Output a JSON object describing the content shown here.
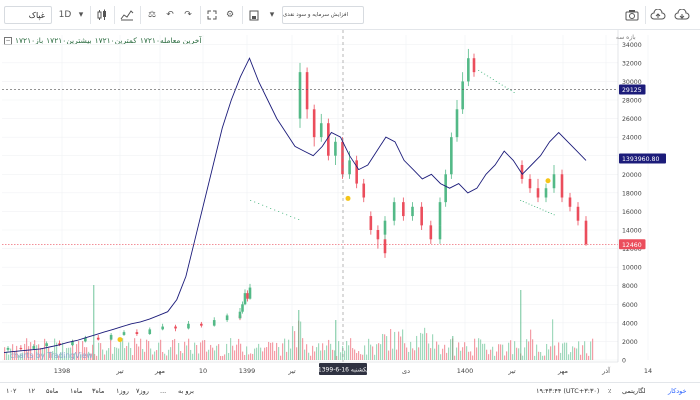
{
  "toolbar": {
    "symbol": "غپاک",
    "interval": "1D",
    "search_placeholder": "افزایش سرمایه و سود نقدی"
  },
  "legend": {
    "items": [
      "باز۱۷۲۱۰",
      "بیشترین۱۷۲۱۰",
      "کمترین۱۷۲۱۰",
      "آخرین معامله۱۷۲۱۰"
    ]
  },
  "scale_label": "بازه سه",
  "price_axis": {
    "ticks": [
      "34000",
      "32000",
      "30000",
      "28000",
      "26000",
      "24000",
      "22000",
      "20000",
      "18000",
      "16000",
      "14000",
      "12000",
      "10000",
      "8000",
      "6000",
      "4000",
      "2000",
      "0"
    ],
    "badges": {
      "line1": "29125",
      "line2": "1393960.80",
      "last": "12460"
    }
  },
  "time_axis": {
    "labels": [
      "1398",
      "تیر",
      "مهر",
      "10",
      "1399",
      "تیر",
      "مهر",
      "دی",
      "1400",
      "تیر",
      "مهر",
      "آذر",
      "14"
    ],
    "crosshair_label": "یکشنبه 16-6-1399"
  },
  "watermark": "charts by TradingView",
  "bottombar": {
    "ranges": [
      "۱۰۲",
      "۱۲",
      "۵ماه",
      "۱ماه",
      "۳ماه",
      "روز۱",
      "روز۷",
      "...",
      "برو به"
    ],
    "time": "۱۹:۴۳:۴۴ (UTC+۳:۳۰)",
    "percent": "٪",
    "log": "لگاریتمی",
    "auto": "خودکار"
  },
  "colors": {
    "up": "#53b987",
    "down": "#eb4d5c",
    "line": "#1c1c7a",
    "badge_blue": "#1c1c7a",
    "badge_red": "#eb4d5c"
  },
  "chart_data": {
    "type": "candlestick",
    "price_range": [
      0,
      35000
    ],
    "overlay_line_series": "blue line",
    "last_price": 12460,
    "reference_line": 29125,
    "candles": [
      {
        "t": "1398",
        "o": 1100,
        "c": 1300,
        "h": 1500,
        "l": 900
      },
      {
        "t": "1398",
        "o": 1300,
        "c": 1200,
        "h": 1600,
        "l": 1000
      },
      {
        "t": "1398",
        "o": 1200,
        "c": 1500,
        "h": 1700,
        "l": 1100
      },
      {
        "t": "1398",
        "o": 1500,
        "c": 1800,
        "h": 2000,
        "l": 1400
      },
      {
        "t": "1398",
        "o": 1800,
        "c": 1600,
        "h": 2100,
        "l": 1500
      },
      {
        "t": "1398",
        "o": 1600,
        "c": 2000,
        "h": 2200,
        "l": 1500
      },
      {
        "t": "1398",
        "o": 2000,
        "c": 2400,
        "h": 2600,
        "l": 1900
      },
      {
        "t": "1398",
        "o": 2400,
        "c": 2200,
        "h": 2700,
        "l": 2100
      },
      {
        "t": "1398",
        "o": 2200,
        "c": 2700,
        "h": 2900,
        "l": 2100
      },
      {
        "t": "1398",
        "o": 2700,
        "c": 3000,
        "h": 3200,
        "l": 2600
      },
      {
        "t": "1398",
        "o": 3000,
        "c": 2800,
        "h": 3300,
        "l": 2600
      },
      {
        "t": "1398",
        "o": 2800,
        "c": 3300,
        "h": 3500,
        "l": 2700
      },
      {
        "t": "1398",
        "o": 3300,
        "c": 3600,
        "h": 3900,
        "l": 3200
      },
      {
        "t": "1398",
        "o": 3600,
        "c": 3400,
        "h": 3800,
        "l": 3100
      },
      {
        "t": "1398",
        "o": 3400,
        "c": 3900,
        "h": 4200,
        "l": 3300
      },
      {
        "t": "1398",
        "o": 3900,
        "c": 3700,
        "h": 4100,
        "l": 3500
      },
      {
        "t": "1398",
        "o": 3700,
        "c": 4300,
        "h": 4600,
        "l": 3600
      },
      {
        "t": "1398",
        "o": 4300,
        "c": 4800,
        "h": 5000,
        "l": 4100
      },
      {
        "t": "1398",
        "o": 4800,
        "c": 4500,
        "h": 5100,
        "l": 4300
      },
      {
        "t": "1399",
        "o": 4500,
        "c": 5200,
        "h": 5600,
        "l": 4400
      },
      {
        "t": "1399",
        "o": 5200,
        "c": 6000,
        "h": 6300,
        "l": 5000
      },
      {
        "t": "1399",
        "o": 6000,
        "c": 7200,
        "h": 7600,
        "l": 5900
      },
      {
        "t": "1399",
        "o": 7200,
        "c": 6600,
        "h": 7500,
        "l": 6300
      },
      {
        "t": "1399",
        "o": 6600,
        "c": 7800,
        "h": 8200,
        "l": 6500
      },
      {
        "t": "تیر",
        "o": 26000,
        "c": 31000,
        "h": 32000,
        "l": 25000
      },
      {
        "t": "تیر",
        "o": 31000,
        "c": 27000,
        "h": 31500,
        "l": 26000
      },
      {
        "t": "تیر",
        "o": 27000,
        "c": 24000,
        "h": 27500,
        "l": 23000
      },
      {
        "t": "تیر",
        "o": 24000,
        "c": 25500,
        "h": 26500,
        "l": 23500
      },
      {
        "t": "تیر",
        "o": 25500,
        "c": 22000,
        "h": 26000,
        "l": 21500
      },
      {
        "t": "تیر",
        "o": 22000,
        "c": 23500,
        "h": 24000,
        "l": 21000
      },
      {
        "t": "مهر",
        "o": 23500,
        "c": 20000,
        "h": 24000,
        "l": 19500
      },
      {
        "t": "مهر",
        "o": 20000,
        "c": 21500,
        "h": 22500,
        "l": 19500
      },
      {
        "t": "مهر",
        "o": 21500,
        "c": 19000,
        "h": 22000,
        "l": 18500
      },
      {
        "t": "مهر",
        "o": 19000,
        "c": 17500,
        "h": 19500,
        "l": 17000
      },
      {
        "t": "مهر",
        "o": 15500,
        "c": 14000,
        "h": 16000,
        "l": 13500
      },
      {
        "t": "مهر",
        "o": 14000,
        "c": 13000,
        "h": 14500,
        "l": 12000
      },
      {
        "t": "مهر",
        "o": 13000,
        "c": 11500,
        "h": 13500,
        "l": 11000
      },
      {
        "t": "دی",
        "o": 13500,
        "c": 15000,
        "h": 15500,
        "l": 13000
      },
      {
        "t": "دی",
        "o": 15000,
        "c": 17000,
        "h": 17500,
        "l": 14500
      },
      {
        "t": "دی",
        "o": 17000,
        "c": 15500,
        "h": 17500,
        "l": 15000
      },
      {
        "t": "دی",
        "o": 15500,
        "c": 16500,
        "h": 17000,
        "l": 15000
      },
      {
        "t": "دی",
        "o": 16500,
        "c": 14500,
        "h": 17000,
        "l": 14000
      },
      {
        "t": "دی",
        "o": 14500,
        "c": 13000,
        "h": 15000,
        "l": 12500
      },
      {
        "t": "دی",
        "o": 13000,
        "c": 14500,
        "h": 15000,
        "l": 12500
      },
      {
        "t": "1400",
        "o": 14500,
        "c": 17000,
        "h": 17500,
        "l": 14000
      },
      {
        "t": "1400",
        "o": 17000,
        "c": 20000,
        "h": 20500,
        "l": 16500
      },
      {
        "t": "1400",
        "o": 20000,
        "c": 24000,
        "h": 24500,
        "l": 19500
      },
      {
        "t": "1400",
        "o": 24000,
        "c": 27000,
        "h": 28000,
        "l": 23500
      },
      {
        "t": "1400",
        "o": 27000,
        "c": 30000,
        "h": 31000,
        "l": 26500
      },
      {
        "t": "1400",
        "o": 30000,
        "c": 32500,
        "h": 33500,
        "l": 29500
      },
      {
        "t": "1400",
        "o": 32500,
        "c": 31000,
        "h": 33000,
        "l": 30500
      },
      {
        "t": "تیر",
        "o": 21000,
        "c": 19500,
        "h": 21500,
        "l": 19000
      },
      {
        "t": "تیر",
        "o": 19500,
        "c": 18500,
        "h": 20000,
        "l": 18000
      },
      {
        "t": "تیر",
        "o": 18500,
        "c": 17500,
        "h": 19500,
        "l": 17000
      },
      {
        "t": "مهر",
        "o": 17500,
        "c": 18500,
        "h": 19000,
        "l": 17000
      },
      {
        "t": "مهر",
        "o": 18500,
        "c": 20000,
        "h": 21000,
        "l": 18000
      },
      {
        "t": "مهر",
        "o": 20000,
        "c": 17500,
        "h": 20500,
        "l": 17000
      },
      {
        "t": "آذر",
        "o": 17500,
        "c": 16500,
        "h": 18000,
        "l": 16000
      },
      {
        "t": "آذر",
        "o": 16500,
        "c": 15000,
        "h": 17000,
        "l": 14500
      },
      {
        "t": "آذر",
        "o": 15000,
        "c": 12460,
        "h": 15500,
        "l": 12300
      }
    ],
    "line_values": [
      800,
      900,
      1000,
      1100,
      1200,
      1400,
      1600,
      1900,
      2100,
      2400,
      2700,
      3000,
      3300,
      3600,
      3900,
      4100,
      4400,
      4800,
      5200,
      6500,
      9000,
      13000,
      17000,
      21000,
      25000,
      28000,
      30500,
      32500,
      30000,
      28000,
      26000,
      24500,
      23000,
      22500,
      22000,
      23000,
      24500,
      24000,
      22000,
      20500,
      21000,
      22500,
      24000,
      23500,
      21500,
      20500,
      19500,
      20000,
      19000,
      18500,
      19000,
      18000,
      18500,
      20000,
      21000,
      22500,
      21500,
      20000,
      21000,
      22000,
      23500,
      24500,
      23500,
      22500,
      21500
    ]
  }
}
